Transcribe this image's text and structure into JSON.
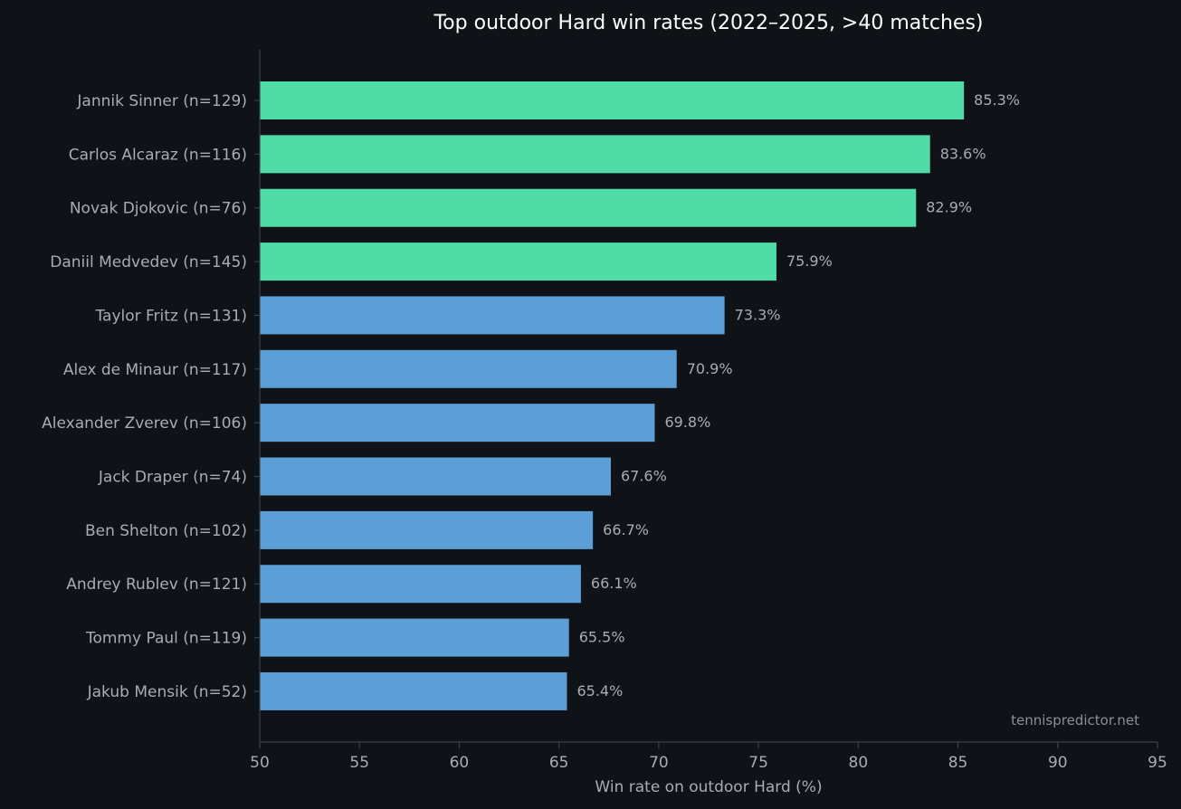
{
  "chart_data": {
    "type": "bar",
    "orientation": "horizontal",
    "title": "Top outdoor Hard win rates (2022–2025, >40 matches)",
    "xlabel": "Win rate on outdoor Hard (%)",
    "ylabel": "",
    "xlim": [
      50,
      95
    ],
    "xticks": [
      "50",
      "55",
      "60",
      "65",
      "70",
      "75",
      "80",
      "85",
      "90",
      "95"
    ],
    "categories": [
      "Jannik Sinner  (n=129)",
      "Carlos Alcaraz  (n=116)",
      "Novak Djokovic  (n=76)",
      "Daniil Medvedev  (n=145)",
      "Taylor Fritz  (n=131)",
      "Alex de Minaur  (n=117)",
      "Alexander Zverev  (n=106)",
      "Jack Draper  (n=74)",
      "Ben Shelton  (n=102)",
      "Andrey Rublev  (n=121)",
      "Tommy Paul  (n=119)",
      "Jakub Mensik  (n=52)"
    ],
    "values": [
      85.3,
      83.6,
      82.9,
      75.9,
      73.3,
      70.9,
      69.8,
      67.6,
      66.7,
      66.1,
      65.5,
      65.4
    ],
    "value_labels": [
      "85.3%",
      "83.6%",
      "82.9%",
      "75.9%",
      "73.3%",
      "70.9%",
      "69.8%",
      "67.6%",
      "66.7%",
      "66.1%",
      "65.5%",
      "65.4%"
    ],
    "highlight_count": 4,
    "colors": {
      "highlight": "#4fdca6",
      "default": "#5b9fd6",
      "background": "#0f1317",
      "axis": "#3a4047"
    },
    "grid": false,
    "watermark": "tennispredictor.net"
  }
}
